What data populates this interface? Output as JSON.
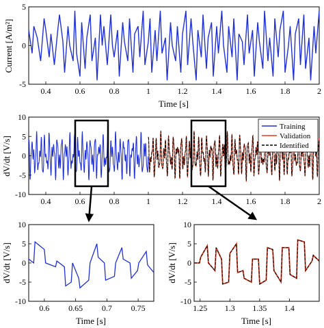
{
  "colors": {
    "current": "#1f2fd6",
    "training": "#1f2fd6",
    "validation": "#e03a1e",
    "identified": "#000000",
    "box": "#000000"
  },
  "chart_data": [
    {
      "type": "line",
      "panel": "current",
      "xlabel": "Time [s]",
      "ylabel": "Current [A/m²]",
      "xlim": [
        0.3,
        2.0
      ],
      "ylim": [
        -5,
        5
      ],
      "xticks": [
        "0.4",
        "0.6",
        "0.8",
        "1",
        "1.2",
        "1.4",
        "1.6",
        "1.8",
        "2"
      ],
      "yticks": [
        "-5",
        "0",
        "5"
      ],
      "grid": false,
      "series": [
        {
          "x": [
            0.3,
            0.32,
            0.33,
            0.35,
            0.36,
            0.37,
            0.39,
            0.4,
            0.42,
            0.43,
            0.45,
            0.47,
            0.48,
            0.5,
            0.51,
            0.53,
            0.54,
            0.56,
            0.57,
            0.58,
            0.6,
            0.61,
            0.63,
            0.64,
            0.66,
            0.67,
            0.69,
            0.7,
            0.72,
            0.73,
            0.74,
            0.76,
            0.78,
            0.79,
            0.8,
            0.82,
            0.83,
            0.85,
            0.86,
            0.88,
            0.89,
            0.91,
            0.92,
            0.94,
            0.95,
            0.97,
            0.98,
            1.0,
            1.01,
            1.02,
            1.04,
            1.05,
            1.07,
            1.08,
            1.1,
            1.11,
            1.13,
            1.14,
            1.16,
            1.17,
            1.19,
            1.2,
            1.22,
            1.23,
            1.25,
            1.26,
            1.28,
            1.29,
            1.31,
            1.32,
            1.34,
            1.35,
            1.37,
            1.38,
            1.4,
            1.41,
            1.43,
            1.44,
            1.46,
            1.47,
            1.49,
            1.5,
            1.52,
            1.53,
            1.55,
            1.56,
            1.58,
            1.59,
            1.61,
            1.62,
            1.64,
            1.65,
            1.67,
            1.68,
            1.7,
            1.71,
            1.73,
            1.74,
            1.76,
            1.77,
            1.79,
            1.8,
            1.82,
            1.83,
            1.85,
            1.86,
            1.88,
            1.89,
            1.91,
            1.92,
            1.94,
            1.95,
            1.97,
            1.98,
            2.0
          ],
          "y": [
            2.0,
            -1.0,
            2.5,
            1.0,
            -0.5,
            -2.0,
            3.5,
            2.0,
            -1.5,
            1.5,
            -2.5,
            2.0,
            4.0,
            0.5,
            -3.5,
            2.5,
            0.0,
            -2.0,
            4.5,
            -1.0,
            -4.0,
            3.0,
            -3.0,
            1.0,
            4.0,
            -2.0,
            1.0,
            -4.5,
            4.0,
            0.0,
            2.5,
            -2.5,
            4.0,
            0.0,
            -1.5,
            2.0,
            -4.0,
            3.0,
            0.5,
            -2.0,
            3.5,
            -3.5,
            1.5,
            2.5,
            -1.5,
            4.5,
            -2.5,
            0.5,
            3.5,
            -3.5,
            2.0,
            -2.0,
            4.5,
            -1.0,
            1.0,
            -4.5,
            3.0,
            0.0,
            -2.0,
            2.5,
            -3.5,
            1.5,
            4.5,
            -2.5,
            3.5,
            0.5,
            -4.5,
            2.0,
            -1.5,
            4.0,
            -3.0,
            1.0,
            3.0,
            -4.0,
            2.5,
            -1.0,
            4.5,
            0.0,
            -3.5,
            2.5,
            -1.5,
            3.5,
            -4.5,
            1.5,
            0.5,
            -2.5,
            4.0,
            -1.0,
            2.0,
            -4.0,
            3.0,
            0.5,
            -3.0,
            4.5,
            -2.0,
            1.0,
            -4.0,
            3.5,
            -1.5,
            2.0,
            4.5,
            -3.5,
            0.0,
            2.5,
            -4.5,
            1.5,
            3.5,
            -2.5,
            4.0,
            -3.0,
            1.0,
            -4.5,
            2.5,
            -1.0,
            4.5
          ]
        }
      ]
    },
    {
      "type": "line",
      "panel": "dvdt",
      "xlabel": "",
      "ylabel": "dV/dt [V/s]",
      "xlim": [
        0.3,
        2.0
      ],
      "ylim": [
        -10,
        10
      ],
      "xticks": [
        "0.4",
        "0.6",
        "0.8",
        "1",
        "1.2",
        "1.4",
        "1.6",
        "1.8",
        "2"
      ],
      "yticks": [
        "-10",
        "-5",
        "0",
        "5",
        "10"
      ],
      "grid": false,
      "legend": {
        "position": "top-right",
        "entries": [
          "Training",
          "Validation",
          "Identified"
        ]
      },
      "series": [
        {
          "name": "Training",
          "x_range": [
            0.3,
            1.0
          ],
          "amplitude": 6
        },
        {
          "name": "Validation",
          "x_range": [
            1.0,
            2.0
          ],
          "amplitude": 6
        },
        {
          "name": "Identified",
          "x_range": [
            1.0,
            2.0
          ],
          "amplitude": 6,
          "style": "dashed"
        }
      ],
      "zoom_boxes": [
        {
          "xlim": [
            0.575,
            0.775
          ],
          "ylim": [
            -8.5,
            10
          ]
        },
        {
          "xlim": [
            1.25,
            1.45
          ],
          "ylim": [
            -8.5,
            10
          ]
        }
      ]
    },
    {
      "type": "line",
      "panel": "zoom-training",
      "xlabel": "Time [s]",
      "ylabel": "dV/dt [V/s]",
      "xlim": [
        0.575,
        0.775
      ],
      "ylim": [
        -10,
        10
      ],
      "xticks": [
        "0.6",
        "0.65",
        "0.7",
        "0.75"
      ],
      "yticks": [
        "-10",
        "-5",
        "0",
        "5",
        "10"
      ],
      "grid": false,
      "series": [
        {
          "name": "Training",
          "x": [
            0.575,
            0.583,
            0.585,
            0.6,
            0.602,
            0.618,
            0.62,
            0.632,
            0.634,
            0.643,
            0.645,
            0.655,
            0.657,
            0.671,
            0.673,
            0.684,
            0.686,
            0.696,
            0.698,
            0.712,
            0.714,
            0.724,
            0.726,
            0.737,
            0.739,
            0.749,
            0.751,
            0.763,
            0.765,
            0.775
          ],
          "y": [
            1,
            0,
            5.5,
            3.5,
            0,
            -1,
            0.5,
            -1,
            -6,
            -5,
            0,
            -4,
            -6.5,
            -4.5,
            0,
            5,
            1.5,
            0,
            -4.5,
            -3.5,
            0,
            4,
            1,
            0,
            -4,
            -2,
            0,
            3,
            -0.5,
            -2.5
          ]
        }
      ]
    },
    {
      "type": "line",
      "panel": "zoom-validation",
      "xlabel": "Time [s]",
      "ylabel": "dV/dt [V/s]",
      "xlim": [
        1.24,
        1.45
      ],
      "ylim": [
        -10,
        10
      ],
      "xticks": [
        "1.25",
        "1.3",
        "1.35",
        "1.4"
      ],
      "yticks": [
        "-10",
        "-5",
        "0",
        "5",
        "10"
      ],
      "grid": false,
      "series": [
        {
          "name": "Validation",
          "x": [
            1.24,
            1.249,
            1.251,
            1.262,
            1.264,
            1.275,
            1.277,
            1.286,
            1.288,
            1.298,
            1.3,
            1.311,
            1.313,
            1.322,
            1.324,
            1.336,
            1.338,
            1.348,
            1.35,
            1.361,
            1.363,
            1.372,
            1.374,
            1.386,
            1.388,
            1.399,
            1.401,
            1.412,
            1.414,
            1.425,
            1.427,
            1.438,
            1.44,
            1.45
          ],
          "y": [
            0,
            0,
            1.5,
            4.5,
            0,
            -2,
            4,
            1,
            -5.5,
            -5,
            2.5,
            5,
            -2.5,
            -2,
            -4,
            -5,
            1,
            1,
            -5.5,
            -4.5,
            4,
            3.5,
            -2,
            -5,
            4,
            4,
            -3,
            -4,
            6,
            5.5,
            -2,
            0.5,
            2,
            0.5
          ]
        },
        {
          "name": "Identified",
          "style": "dashed",
          "same_as": "Validation"
        }
      ]
    }
  ]
}
